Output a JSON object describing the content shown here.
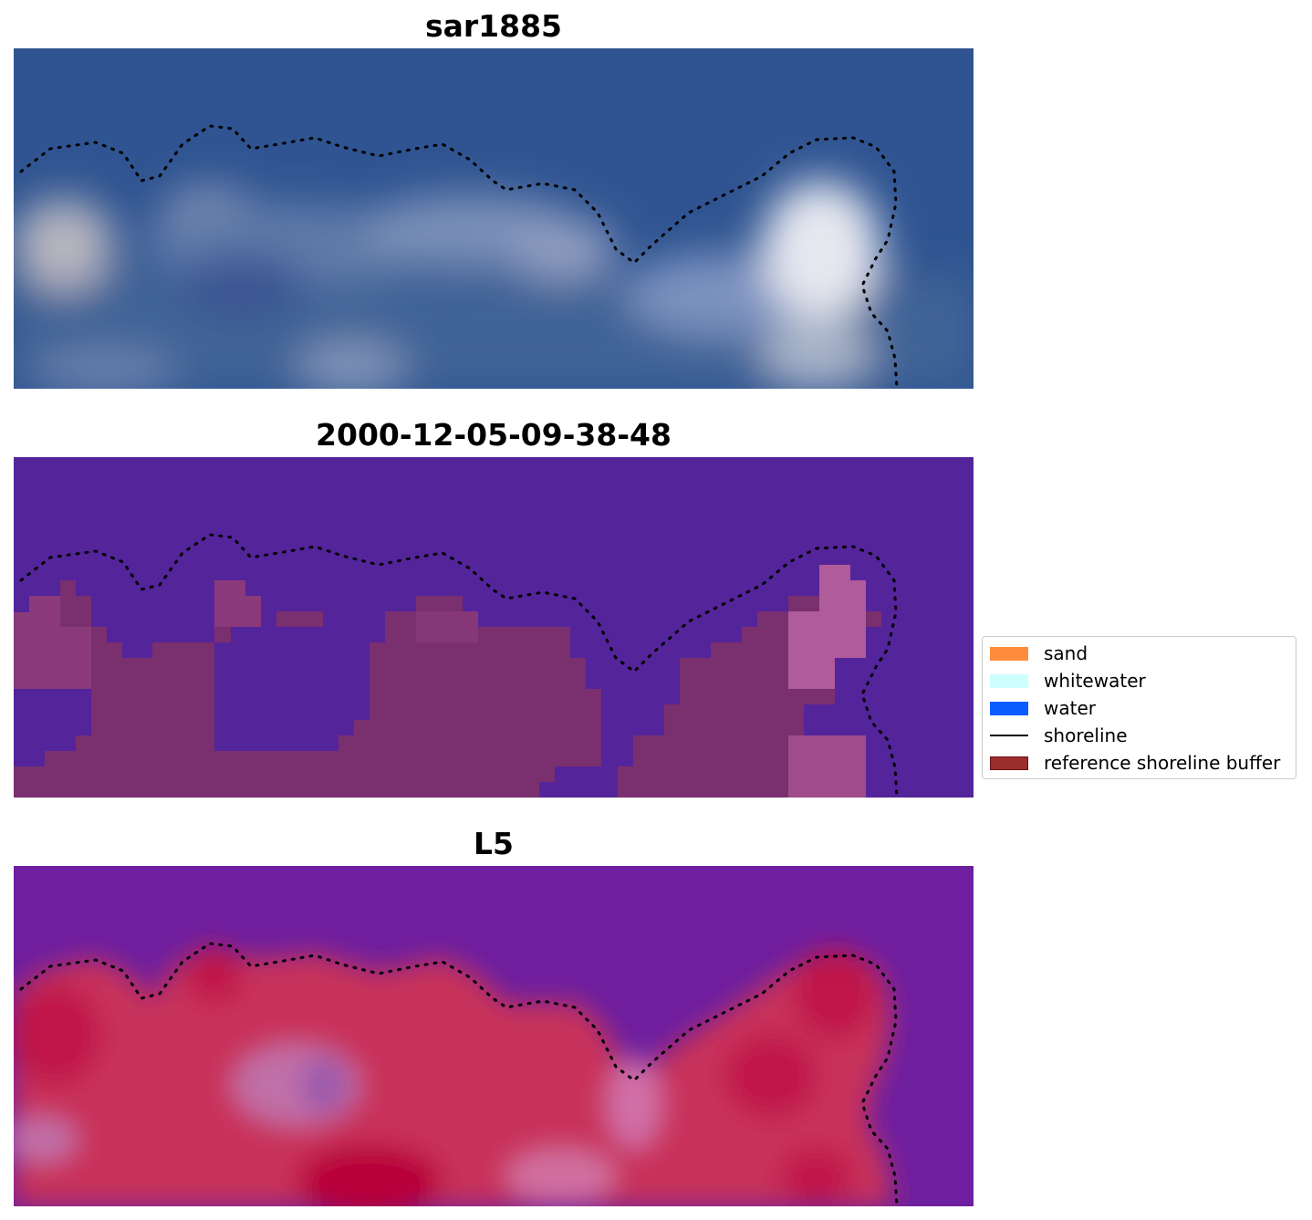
{
  "panels": [
    {
      "title": "sar1885"
    },
    {
      "title": "2000-12-05-09-38-48"
    },
    {
      "title": "L5"
    }
  ],
  "legend": {
    "items": [
      {
        "label": "sand",
        "color": "#ff8c3a",
        "kind": "patch"
      },
      {
        "label": "whitewater",
        "color": "#ccfffd",
        "kind": "patch"
      },
      {
        "label": "water",
        "color": "#0a5cff",
        "kind": "patch"
      },
      {
        "label": "shoreline",
        "color": "#000000",
        "kind": "line"
      },
      {
        "label": "reference shoreline buffer",
        "color": "#9b2d2d",
        "kind": "patch"
      }
    ]
  },
  "colors": {
    "rgb_background": "#2f5491",
    "class_background": "#54249a",
    "class_overlay": "#7a2f6e",
    "mndwi_background": "#6e1f9f",
    "mndwi_land": "#c8305a",
    "shoreline": "#000000"
  }
}
